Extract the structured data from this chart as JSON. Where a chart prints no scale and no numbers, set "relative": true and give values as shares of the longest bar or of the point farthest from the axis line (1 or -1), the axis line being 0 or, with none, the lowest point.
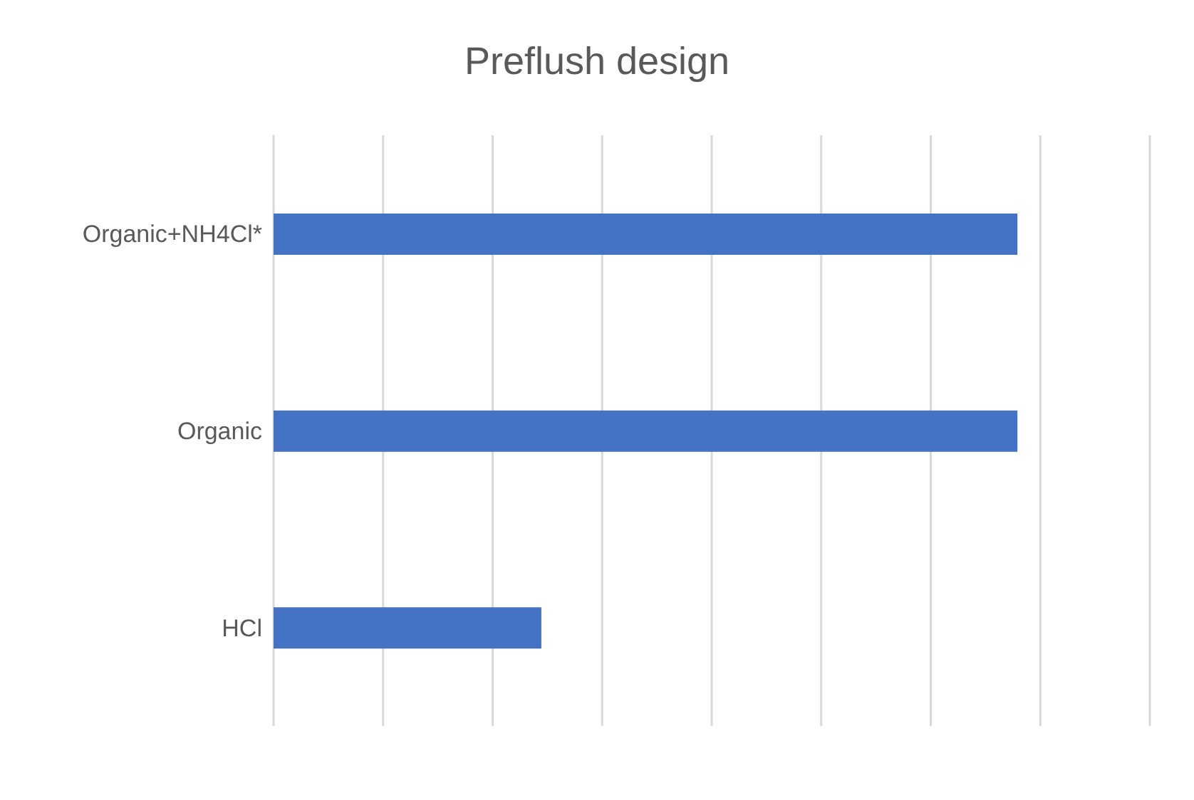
{
  "chart_data": {
    "type": "bar",
    "title": "Preflush design",
    "orientation": "horizontal",
    "relative": true,
    "categories": [
      "Organic+NH4Cl*",
      "Organic",
      "HCl"
    ],
    "values": [
      1,
      1,
      0.36
    ],
    "color": "#4472c4",
    "grid": "x"
  }
}
